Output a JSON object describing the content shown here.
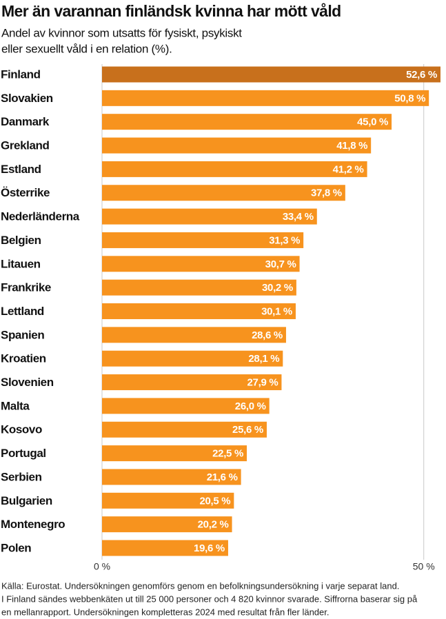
{
  "chart_data": {
    "type": "hbar",
    "title": "Mer än varannan finländsk kvinna har mött våld",
    "subtitle": [
      "Andel av kvinnor som utsatts för fysiskt, psykiskt",
      "eller sexuellt våld i en relation (%)."
    ],
    "categories": [
      "Finland",
      "Slovakien",
      "Danmark",
      "Grekland",
      "Estland",
      "Österrike",
      "Nederländerna",
      "Belgien",
      "Litauen",
      "Frankrike",
      "Lettland",
      "Spanien",
      "Kroatien",
      "Slovenien",
      "Malta",
      "Kosovo",
      "Portugal",
      "Serbien",
      "Bulgarien",
      "Montenegro",
      "Polen"
    ],
    "values": [
      52.6,
      50.8,
      45.0,
      41.8,
      41.2,
      37.8,
      33.4,
      31.3,
      30.7,
      30.2,
      30.1,
      28.6,
      28.1,
      27.9,
      26.0,
      25.6,
      22.5,
      21.6,
      20.5,
      20.2,
      19.6
    ],
    "value_labels": [
      "52,6 %",
      "50,8 %",
      "45,0 %",
      "41,8 %",
      "41,2 %",
      "37,8 %",
      "33,4 %",
      "31,3 %",
      "30,7 %",
      "30,2 %",
      "30,1 %",
      "28,6 %",
      "28,1 %",
      "27,9 %",
      "26,0 %",
      "25,6 %",
      "22,5 %",
      "21,6 %",
      "20,5 %",
      "20,2 %",
      "19,6 %"
    ],
    "colors": [
      "#c8701c",
      "#f7931e",
      "#f7931e",
      "#f7931e",
      "#f7931e",
      "#f7931e",
      "#f7931e",
      "#f7931e",
      "#f7931e",
      "#f7931e",
      "#f7931e",
      "#f7931e",
      "#f7931e",
      "#f7931e",
      "#f7931e",
      "#f7931e",
      "#f7931e",
      "#f7931e",
      "#f7931e",
      "#f7931e",
      "#f7931e"
    ],
    "xlim": [
      0,
      52.6
    ],
    "xticks": [
      {
        "value": 0,
        "label": "0 %"
      },
      {
        "value": 50,
        "label": "50 %"
      }
    ],
    "grid": true,
    "source": [
      "Källa: Eurostat. Undersökningen genomförs genom en befolkningsundersökning i varje separat land.",
      "I Finland sändes webbenkäten ut till 25 000 personer och 4 820 kvinnor svarade. Siffrorna baserar sig på",
      "en mellanrapport. Undersökningen kompletteras 2024 med resultat från fler länder."
    ]
  }
}
